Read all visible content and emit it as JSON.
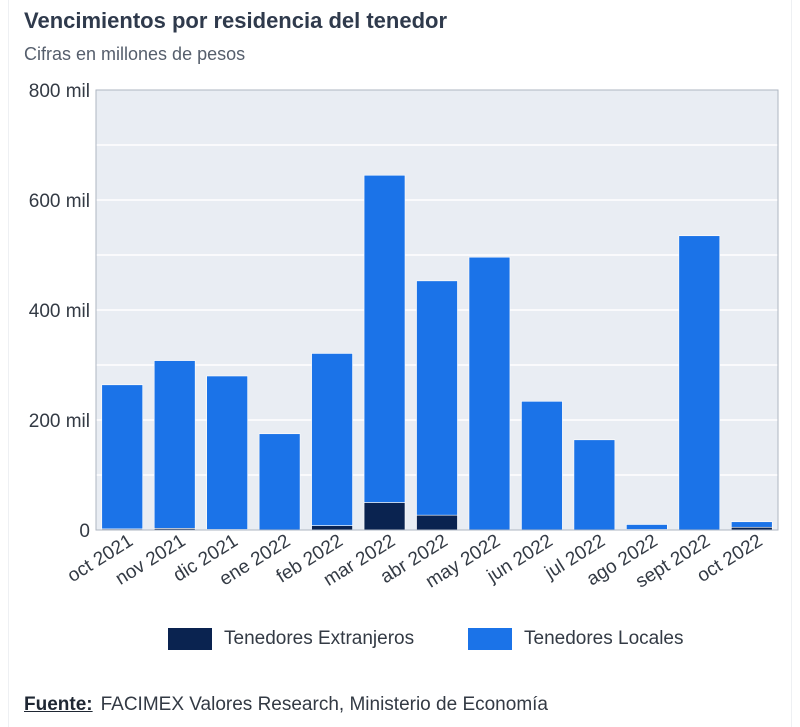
{
  "title": "Vencimientos por residencia del tenedor",
  "subtitle": "Cifras en millones de pesos",
  "source": {
    "label": "Fuente:",
    "text": "FACIMEX Valores Research, Ministerio de Economía"
  },
  "colors": {
    "extranjeros": "#0a2350",
    "locales": "#1b73e8",
    "plot_bg": "#e9edf3",
    "grid": "#ffffff",
    "axis_text": "#333a44"
  },
  "chart_data": {
    "type": "bar",
    "stacked": true,
    "categories": [
      "oct 2021",
      "nov 2021",
      "dic 2021",
      "ene 2022",
      "feb 2022",
      "mar 2022",
      "abr 2022",
      "may 2022",
      "jun 2022",
      "jul 2022",
      "ago 2022",
      "sept 2022",
      "oct 2022"
    ],
    "series": [
      {
        "name": "Tenedores Extranjeros",
        "color": "#0a2350",
        "values": [
          2,
          3,
          1,
          0,
          8,
          50,
          27,
          0,
          0,
          0,
          1,
          0,
          5
        ]
      },
      {
        "name": "Tenedores Locales",
        "color": "#1b73e8",
        "values": [
          262,
          305,
          279,
          175,
          313,
          595,
          426,
          496,
          234,
          164,
          9,
          535,
          10
        ]
      }
    ],
    "yticks": [
      {
        "value": 0,
        "label": "0"
      },
      {
        "value": 200000,
        "label": "200 mil"
      },
      {
        "value": 400000,
        "label": "400 mil"
      },
      {
        "value": 600000,
        "label": "600 mil"
      },
      {
        "value": 800000,
        "label": "800 mil"
      }
    ],
    "ylim": [
      0,
      800
    ],
    "grid": true,
    "legend_position": "bottom",
    "xlabel": "",
    "ylabel": ""
  }
}
